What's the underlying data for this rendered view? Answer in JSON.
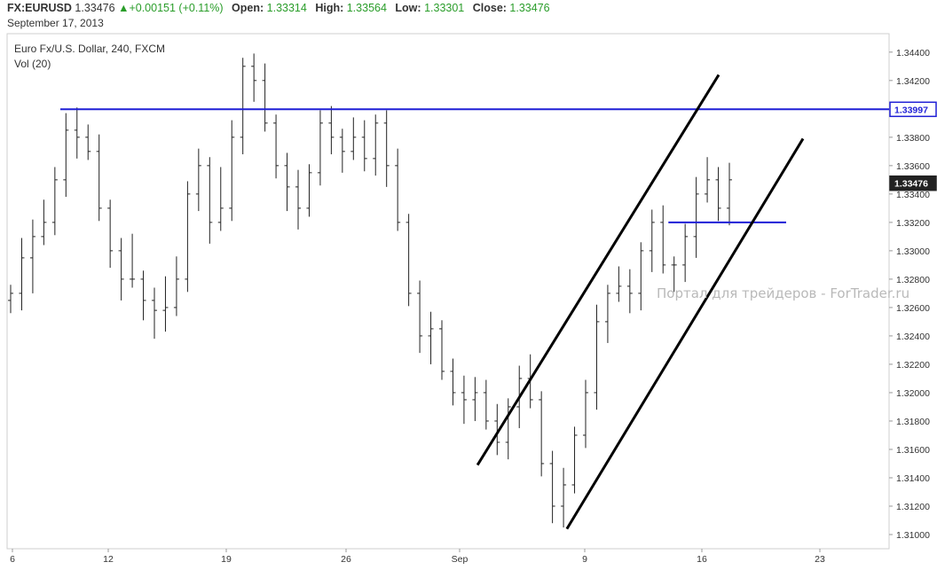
{
  "header": {
    "symbol": "FX:EURUSD",
    "last": "1.33476",
    "change_arrow": "▲",
    "change": "+0.00151 (+0.11%)",
    "open_label": "Open:",
    "open": "1.33314",
    "high_label": "High:",
    "high": "1.33564",
    "low_label": "Low:",
    "low": "1.33301",
    "close_label": "Close:",
    "close": "1.33476",
    "date": "September 17, 2013"
  },
  "chart_data": {
    "type": "ohlc",
    "title": "Euro Fx/U.S. Dollar, 240, FXCM",
    "indicator": "Vol (20)",
    "watermark": "Портал для трейдеров - ForTrader.ru",
    "y_range": [
      1.309,
      1.3453
    ],
    "y_ticks": [
      "1.34400",
      "1.34200",
      "1.33800",
      "1.33600",
      "1.33400",
      "1.33200",
      "1.33000",
      "1.32800",
      "1.32600",
      "1.32400",
      "1.32200",
      "1.32000",
      "1.31800",
      "1.31600",
      "1.31400",
      "1.31200",
      "1.31000"
    ],
    "x_ticks": [
      "6",
      "12",
      "19",
      "26",
      "Sep",
      "9",
      "16",
      "23"
    ],
    "price_tags": [
      {
        "value": "1.33997",
        "style": "blue"
      },
      {
        "value": "1.33476",
        "style": "dark"
      }
    ],
    "horizontal_lines": [
      {
        "level": 1.33997,
        "from": "Aug 9",
        "to": "end",
        "color": "#1f1fd6"
      },
      {
        "level": 1.332,
        "from": "Sep 14",
        "to": "Sep 21",
        "color": "#1f1fd6"
      }
    ],
    "trend_lines": [
      {
        "from": [
          "Sep 3",
          1.3149
        ],
        "to": [
          "Sep 17",
          1.3424
        ]
      },
      {
        "from": [
          "Sep 8",
          1.3104
        ],
        "to": [
          "Sep 22",
          1.3379
        ]
      }
    ],
    "colors": {
      "bars": "#222222",
      "level": "#1f1fd6",
      "channel": "#000000",
      "grid": "#e6e6e6"
    }
  }
}
